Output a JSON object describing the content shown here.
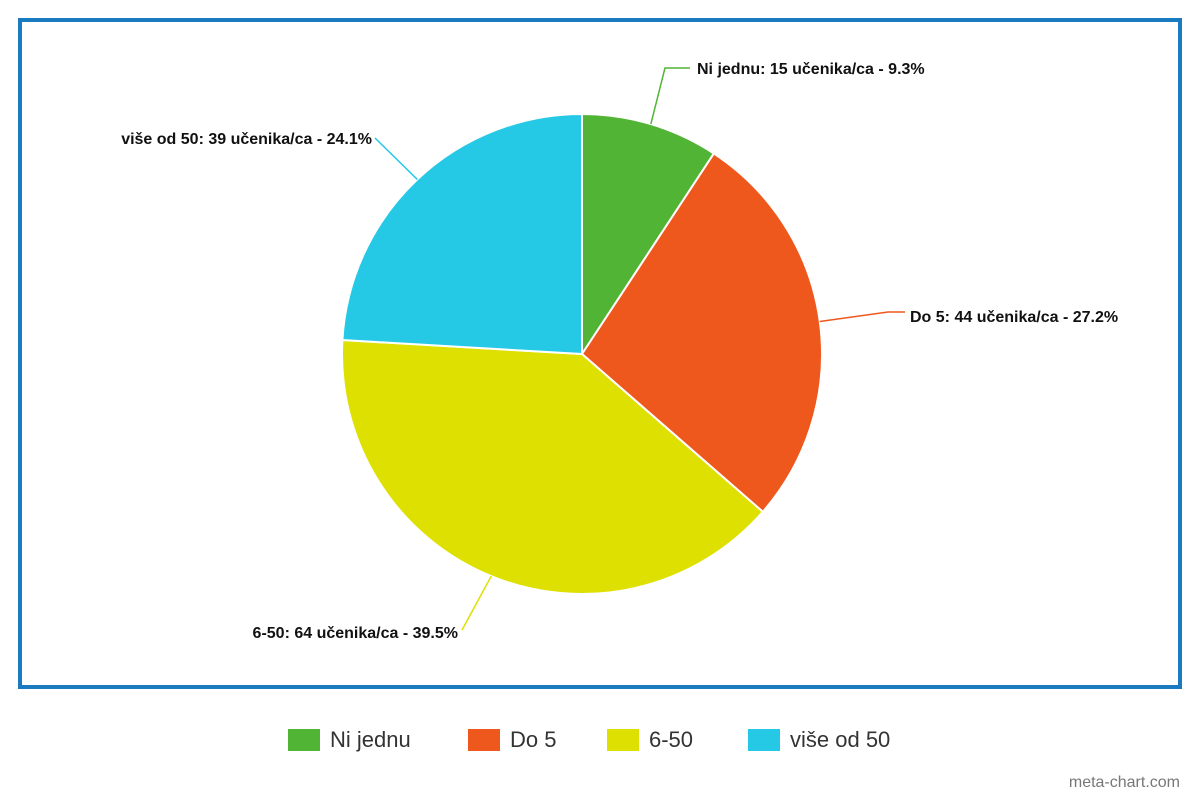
{
  "chart_data": {
    "type": "pie",
    "categories": [
      "Ni jednu",
      "Do 5",
      "6-50",
      "više od 50"
    ],
    "values": [
      15,
      44,
      64,
      39
    ],
    "value_labels": [
      "Ni jednu: 15 učenika/ca - 9.3%",
      "Do 5: 44 učenika/ca - 27.2%",
      "6-50: 64 učenika/ca - 39.5%",
      "više od 50: 39 učenika/ca - 24.1%"
    ],
    "colors": [
      "#52b435",
      "#ee581d",
      "#dde000",
      "#25c9e6"
    ],
    "legend": "bottom",
    "watermark": "meta-chart.com"
  }
}
